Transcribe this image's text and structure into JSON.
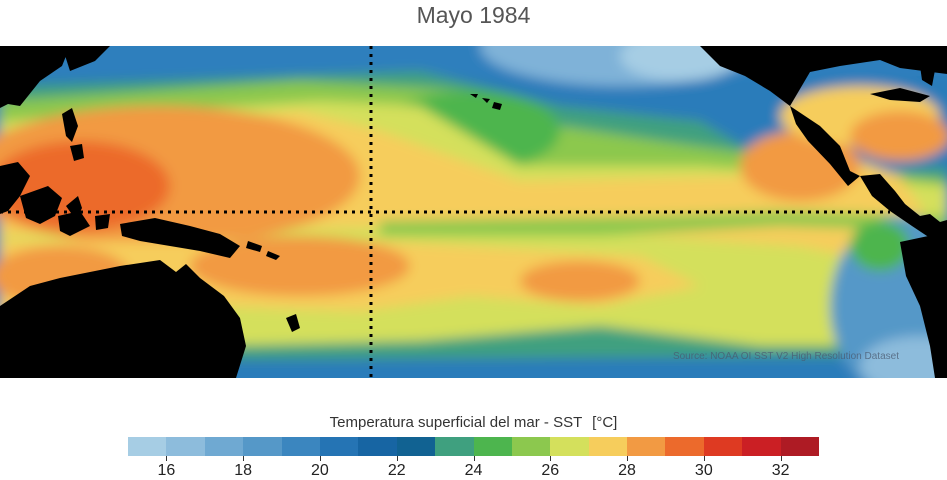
{
  "title": "Mayo 1984",
  "credit": "Source: NOAA OI SST V2 High Resolution Dataset",
  "colorbar": {
    "label": "Temperatura superficial del mar - SST",
    "unit": "[°C]",
    "range": [
      15,
      33
    ],
    "colors": [
      "#a6cde4",
      "#8dbcdc",
      "#6fa9d2",
      "#5598c8",
      "#3b86bf",
      "#2574b4",
      "#1765a3",
      "#116292",
      "#3fa07f",
      "#4db54e",
      "#8cc84e",
      "#d4e05c",
      "#f6cd5c",
      "#f29a43",
      "#ec6a2c",
      "#de3a22",
      "#cb1f24",
      "#ae1b24"
    ],
    "ticks": [
      16,
      18,
      20,
      22,
      24,
      26,
      28,
      30,
      32
    ]
  },
  "map": {
    "region": "Tropical Pacific",
    "equator_line": "dotted",
    "dateline": "dotted"
  }
}
